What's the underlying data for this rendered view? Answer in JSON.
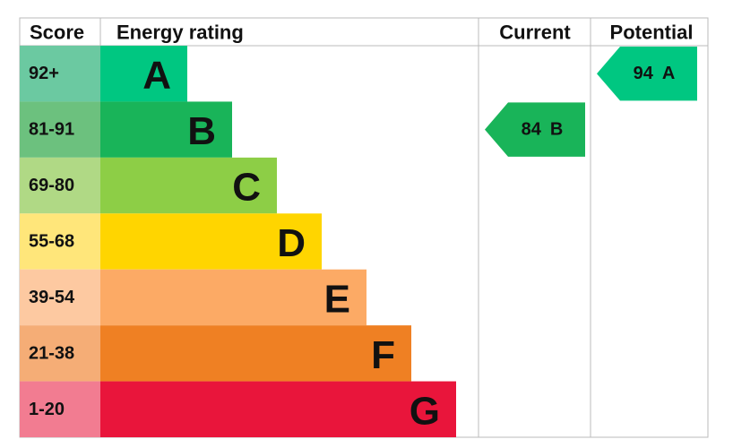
{
  "header": {
    "score": "Score",
    "rating": "Energy rating",
    "current": "Current",
    "potential": "Potential"
  },
  "rows": [
    {
      "score": "92+",
      "letter": "A",
      "score_color": "#6bc9a1",
      "color": "#00c781"
    },
    {
      "score": "81-91",
      "letter": "B",
      "score_color": "#6cc17e",
      "color": "#19b459"
    },
    {
      "score": "69-80",
      "letter": "C",
      "score_color": "#b0d985",
      "color": "#8dce46"
    },
    {
      "score": "55-68",
      "letter": "D",
      "score_color": "#ffe67a",
      "color": "#ffd500"
    },
    {
      "score": "39-54",
      "letter": "E",
      "score_color": "#fdc9a1",
      "color": "#fcaa65"
    },
    {
      "score": "21-38",
      "letter": "F",
      "score_color": "#f5ad76",
      "color": "#ef8023"
    },
    {
      "score": "1-20",
      "letter": "G",
      "score_color": "#f27c91",
      "color": "#e9153b"
    }
  ],
  "current": {
    "value": 84,
    "letter": "B"
  },
  "potential": {
    "value": 94,
    "letter": "A"
  }
}
